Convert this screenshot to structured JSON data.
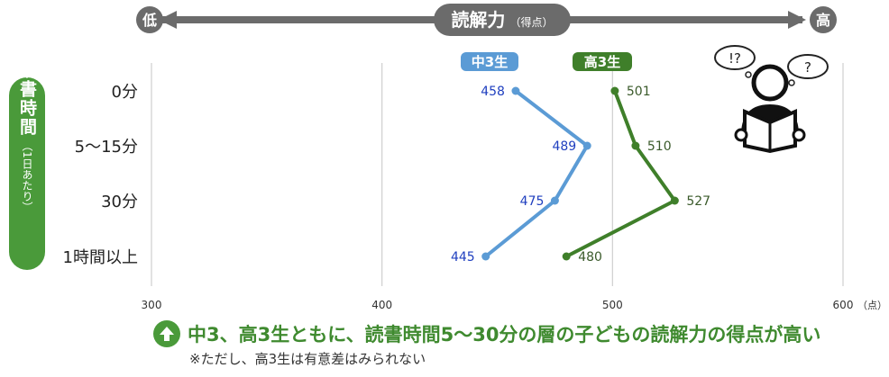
{
  "header": {
    "low_label": "低",
    "high_label": "高",
    "title": "読解力",
    "title_sub": "（得点）"
  },
  "y_axis_label": {
    "main": "読書時間",
    "sub": "（1日あたり）"
  },
  "colors": {
    "middle3": "#5b9bd5",
    "middle3_text": "#1f3fbf",
    "high3": "#3f7f2a",
    "high3_text": "#3a5a2a",
    "accent_green": "#4a9a3a",
    "header_gray": "#6b6b6b"
  },
  "icons": {
    "reader": "person-reading-book-icon",
    "conclusion": "up-arrow-icon"
  },
  "chart_data": {
    "type": "line",
    "orientation": "horizontal",
    "categories": [
      "0分",
      "5～15分",
      "30分",
      "1時間以上"
    ],
    "xlim": [
      300,
      600
    ],
    "x_ticks": [
      "300",
      "400",
      "500",
      "600"
    ],
    "x_unit": "（点）",
    "grid": true,
    "legend_position": "top",
    "series": [
      {
        "name": "中3生",
        "values": [
          458,
          489,
          475,
          445
        ],
        "labels": [
          "458",
          "489",
          "475",
          "445"
        ]
      },
      {
        "name": "高3生",
        "values": [
          501,
          510,
          527,
          480
        ],
        "labels": [
          "501",
          "510",
          "527",
          "480"
        ]
      }
    ]
  },
  "conclusion": {
    "text": "中3、高3生ともに、読書時間5～30分の層の子どもの読解力の得点が高い",
    "note": "※ただし、高3生は有意差はみられない"
  }
}
